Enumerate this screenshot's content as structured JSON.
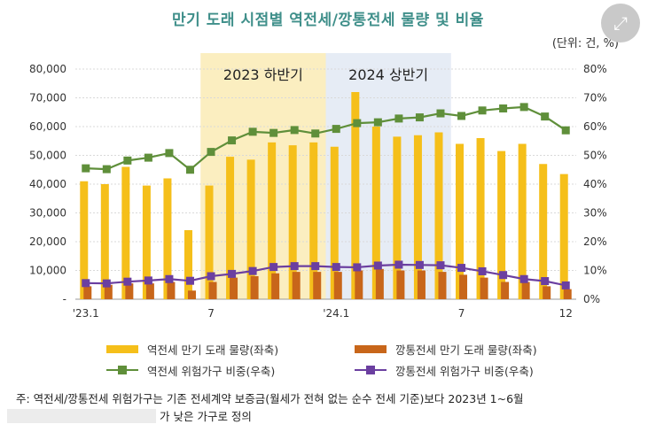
{
  "title": "만기 도래 시점별 역전세/깡통전세 물량 및 비율",
  "unit": "(단위: 건, %)",
  "expand_icon": "expand-arrows-icon",
  "shaded_periods": [
    {
      "label": "2023 하반기",
      "start": "'23.7",
      "end": "'23.12",
      "color": "#fbeec0"
    },
    {
      "label": "2024 상반기",
      "start": "'24.1",
      "end": "'24.6",
      "color": "#e6ecf5"
    }
  ],
  "legend": {
    "bar1": "역전세 만기 도래 물량(좌축)",
    "bar2": "깡통전세 만기 도래 물량(좌축)",
    "line1": "역전세 위험가구 비중(우축)",
    "line2": "깡통전세 위험가구 비중(우축)"
  },
  "footnote": {
    "line1": "주: 역전세/깡통전세 위험가구는 기존 전세계약 보증금(월세가 전혀 없는 순수 전세 기준)보다 2023년 1~6월",
    "line2": "가 낮은 가구로 정의"
  },
  "chart_data": {
    "type": "bar",
    "categories": [
      "'23.1",
      "'23.2",
      "'23.3",
      "'23.4",
      "'23.5",
      "'23.6",
      "'23.7",
      "'23.8",
      "'23.9",
      "'23.10",
      "'23.11",
      "'23.12",
      "'24.1",
      "'24.2",
      "'24.3",
      "'24.4",
      "'24.5",
      "'24.6",
      "'24.7",
      "'24.8",
      "'24.9",
      "'24.10",
      "'24.11",
      "'24.12"
    ],
    "x_tick_labels": [
      "'23.1",
      "",
      "",
      "",
      "",
      "",
      "7",
      "",
      "",
      "",
      "",
      "",
      "'24.1",
      "",
      "",
      "",
      "",
      "",
      "7",
      "",
      "",
      "",
      "",
      "12"
    ],
    "y_left": {
      "range": [
        0,
        80000
      ],
      "ticks": [
        "-",
        "10,000",
        "20,000",
        "30,000",
        "40,000",
        "50,000",
        "60,000",
        "70,000",
        "80,000"
      ]
    },
    "y_right": {
      "range": [
        0,
        80
      ],
      "ticks": [
        "0%",
        "10%",
        "20%",
        "30%",
        "40%",
        "50%",
        "60%",
        "70%",
        "80%"
      ]
    },
    "grid": true,
    "legend_position": "bottom",
    "series": [
      {
        "name": "역전세 만기 도래 물량(좌축)",
        "type": "bar",
        "axis": "left",
        "color": "#f5bf1a",
        "values": [
          41000,
          40000,
          46000,
          39500,
          42000,
          24000,
          39500,
          49500,
          48500,
          54500,
          53500,
          54500,
          53000,
          72000,
          60000,
          56500,
          57000,
          58000,
          54000,
          56000,
          51500,
          54000,
          47000,
          43500
        ]
      },
      {
        "name": "깡통전세 만기 도래 물량(좌축)",
        "type": "bar",
        "axis": "left",
        "color": "#c8661a",
        "values": [
          4500,
          5000,
          5500,
          5500,
          6000,
          3000,
          6000,
          7500,
          8000,
          9000,
          9500,
          9500,
          9500,
          10000,
          10500,
          10000,
          10000,
          9500,
          8500,
          7500,
          6000,
          6000,
          4500,
          3500
        ]
      },
      {
        "name": "역전세 위험가구 비중(우축)",
        "type": "line",
        "axis": "right",
        "color": "#5f8f3a",
        "values": [
          45.5,
          45.2,
          48.2,
          49.2,
          50.8,
          45.0,
          51.2,
          55.2,
          58.2,
          57.8,
          58.8,
          57.6,
          59.2,
          61.2,
          61.5,
          62.8,
          63.2,
          64.6,
          63.7,
          65.6,
          66.3,
          66.8,
          63.5,
          58.7
        ]
      },
      {
        "name": "깡통전세 위험가구 비중(우축)",
        "type": "line",
        "axis": "right",
        "color": "#6b3fa0",
        "values": [
          5.6,
          5.5,
          6.1,
          6.5,
          7.0,
          6.4,
          8.0,
          8.8,
          9.8,
          11.2,
          11.5,
          11.5,
          11.2,
          11.1,
          11.7,
          12.0,
          11.9,
          11.8,
          10.9,
          9.7,
          8.4,
          7.0,
          6.3,
          4.8
        ]
      }
    ]
  }
}
